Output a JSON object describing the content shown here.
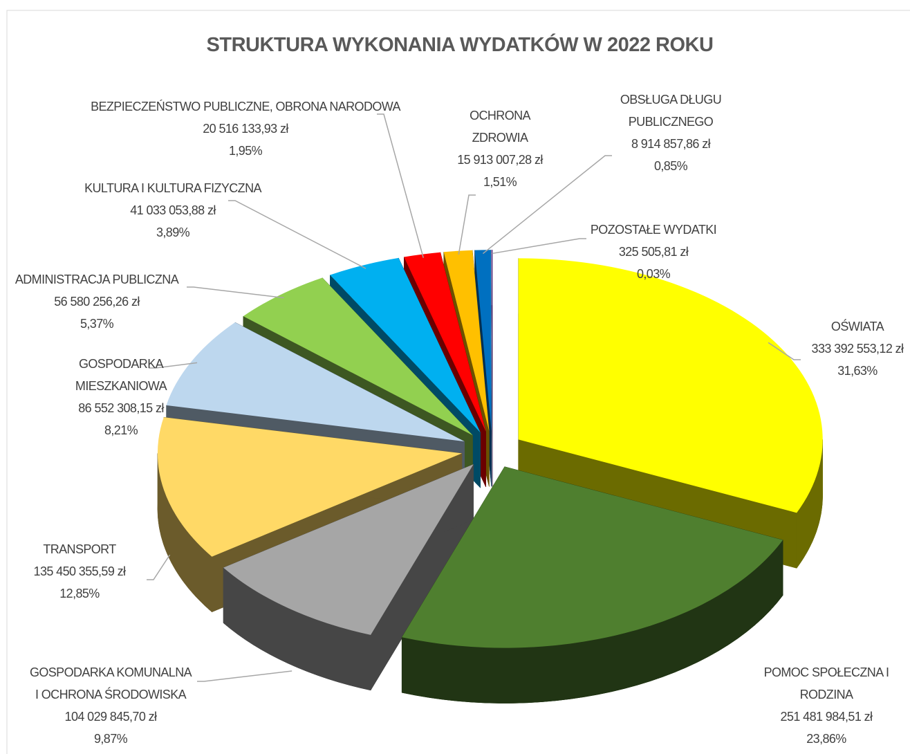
{
  "chart_data": {
    "type": "pie",
    "title": "STRUKTURA WYKONANIA WYDATKÓW W 2022 ROKU",
    "categories": [
      [
        "OŚWIATA"
      ],
      [
        "POMOC SPOŁECZNA I",
        "RODZINA"
      ],
      [
        "GOSPODARKA KOMUNALNA",
        "I OCHRONA ŚRODOWISKA"
      ],
      [
        "TRANSPORT"
      ],
      [
        "GOSPODARKA",
        "MIESZKANIOWA"
      ],
      [
        "ADMINISTRACJA PUBLICZNA"
      ],
      [
        "KULTURA I KULTURA FIZYCZNA"
      ],
      [
        "BEZPIECZEŃSTWO PUBLICZNE, OBRONA NARODOWA"
      ],
      [
        "OCHRONA",
        "ZDROWIA"
      ],
      [
        "OBSŁUGA DŁUGU",
        "PUBLICZNEGO"
      ],
      [
        "POZOSTAŁE WYDATKI"
      ]
    ],
    "values": [
      333392553.12,
      251481984.51,
      104029845.7,
      135450355.59,
      86552308.15,
      56580256.26,
      41033053.88,
      20516133.93,
      15913007.28,
      8914857.86,
      325505.81
    ],
    "value_labels": [
      "333 392 553,12 zł",
      "251 481 984,51 zł",
      "104 029 845,70 zł",
      "135 450 355,59 zł",
      "86 552 308,15 zł",
      "56 580 256,26 zł",
      "41 033 053,88 zł",
      "20 516 133,93 zł",
      "15 913 007,28 zł",
      "8 914 857,86 zł",
      "325 505,81 zł"
    ],
    "percents": [
      31.63,
      23.86,
      9.87,
      12.85,
      8.21,
      5.37,
      3.89,
      1.95,
      1.51,
      0.85,
      0.03
    ],
    "percent_labels": [
      "31,63%",
      "23,86%",
      "9,87%",
      "12,85%",
      "8,21%",
      "5,37%",
      "3,89%",
      "1,95%",
      "1,51%",
      "0,85%",
      "0,03%"
    ],
    "colors": [
      "#ffff00",
      "#4f7f2f",
      "#a6a6a6",
      "#ffd966",
      "#bdd7ee",
      "#92d050",
      "#00b0f0",
      "#ff0000",
      "#ffc000",
      "#0070c0",
      "#7030a0"
    ]
  }
}
